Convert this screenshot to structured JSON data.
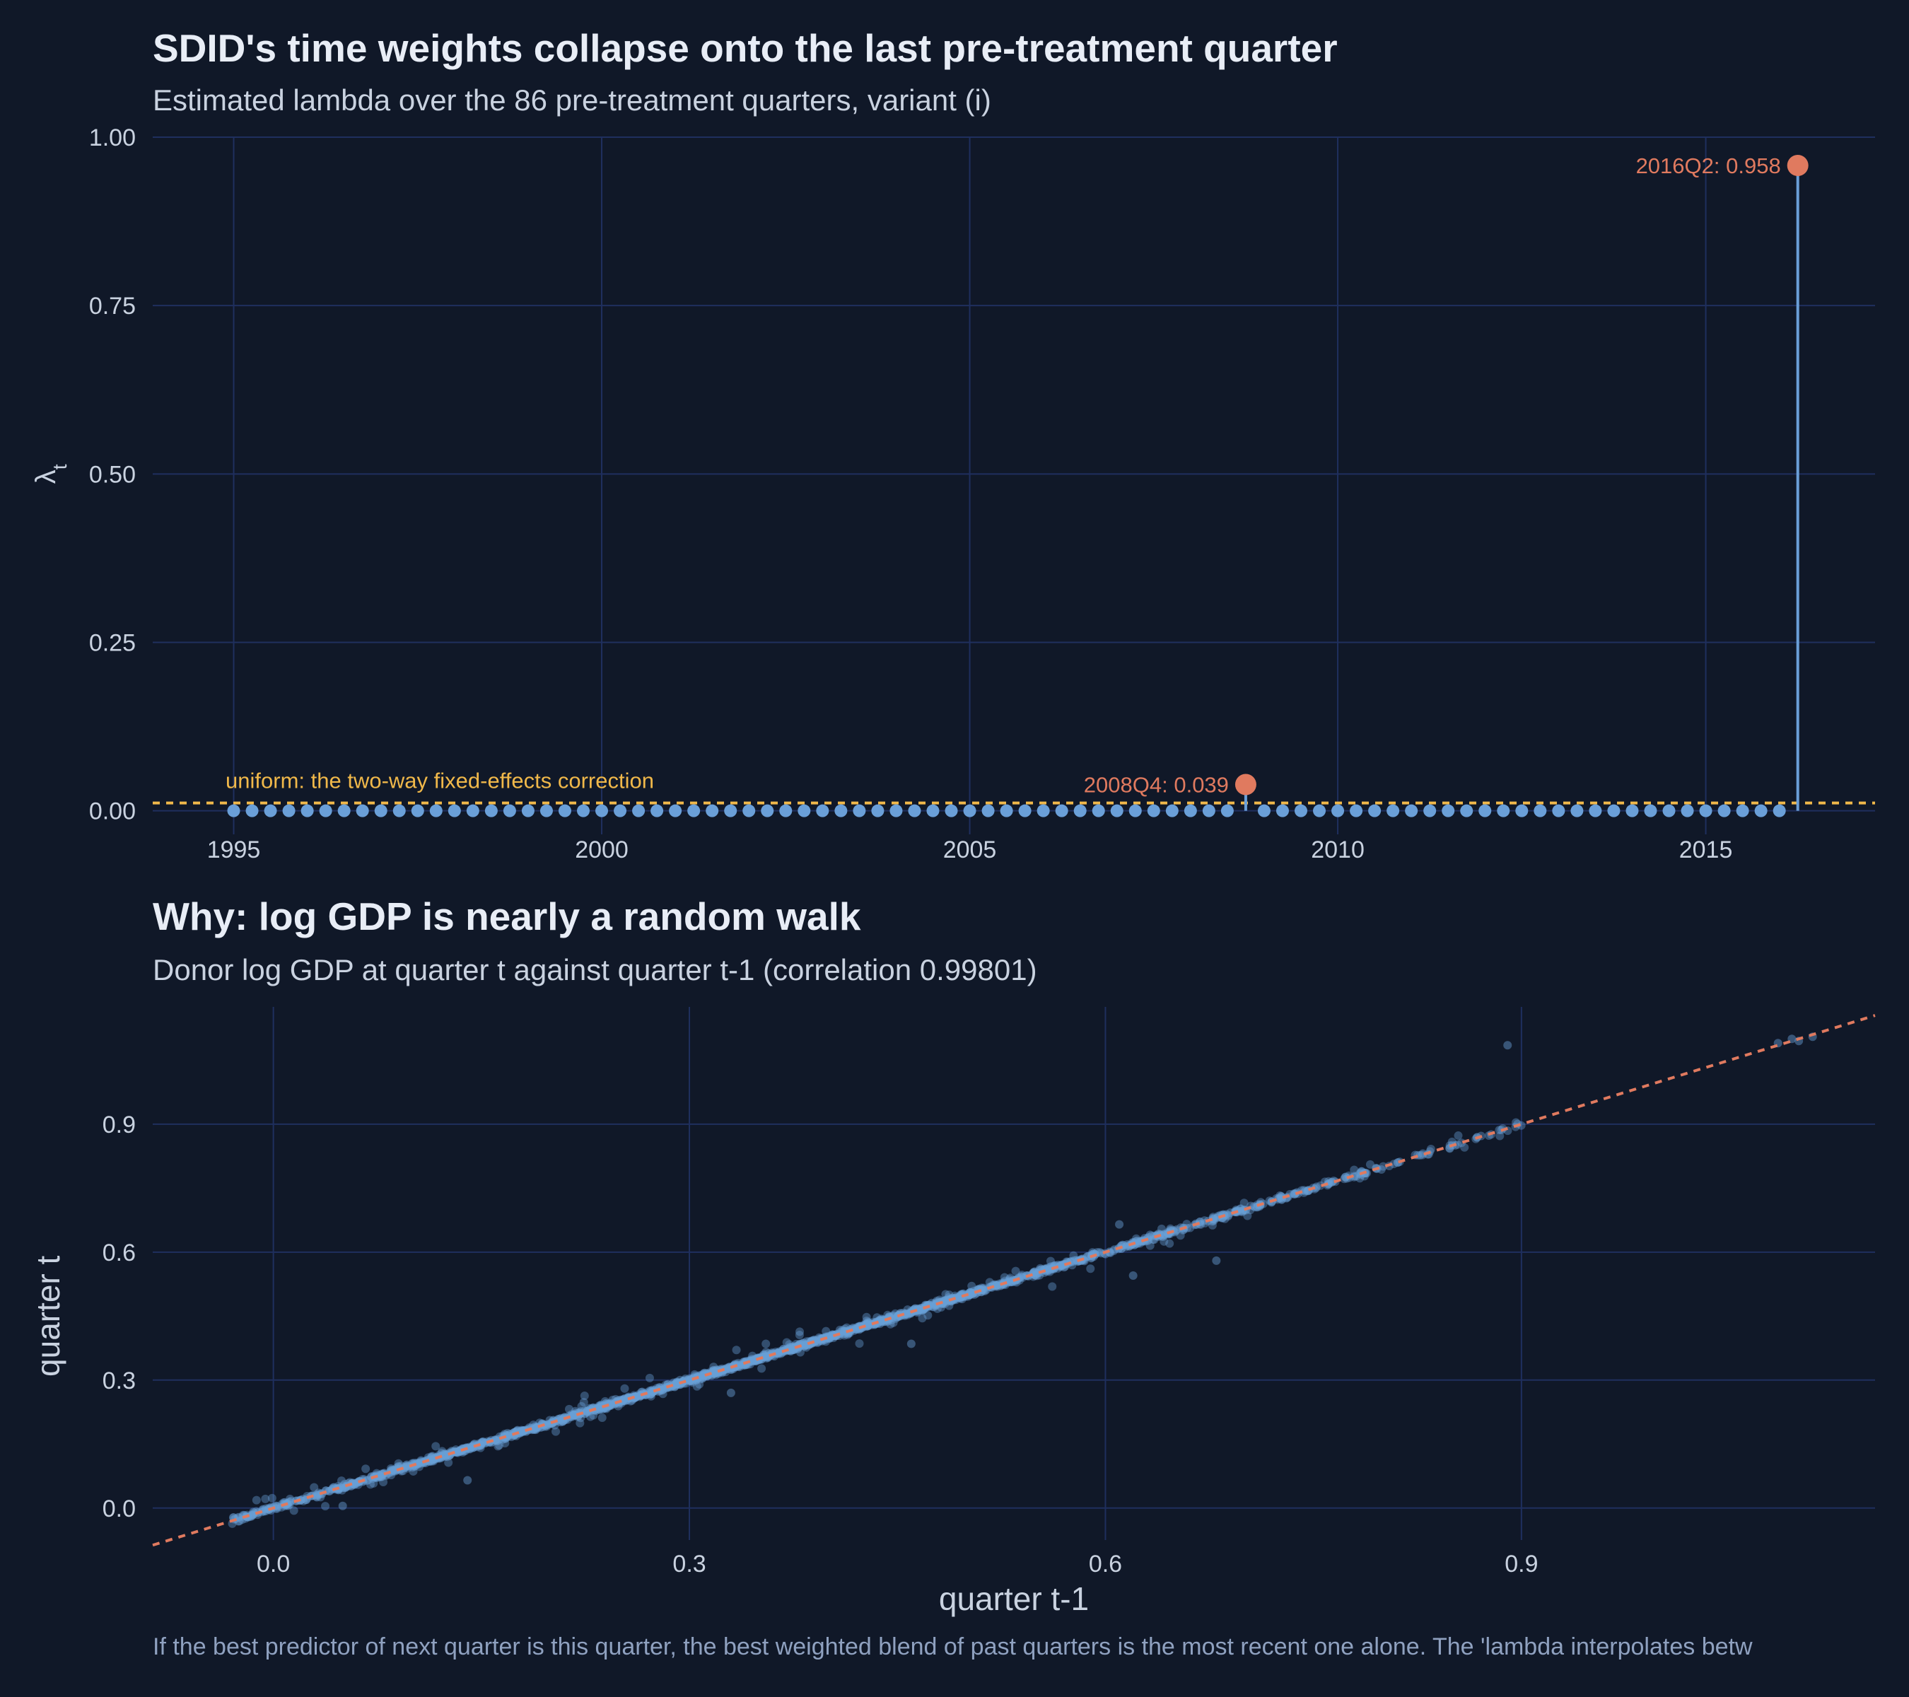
{
  "title1": "SDID's time weights collapse onto the last pre-treatment quarter",
  "subtitle1": "Estimated lambda over the 86 pre-treatment quarters, variant (i)",
  "title2": "Why: log GDP is nearly a random walk",
  "subtitle2": "Donor log GDP at quarter t against quarter t-1 (correlation 0.99801)",
  "caption": "If the best predictor of next quarter is this quarter, the best weighted blend of past quarters is the most recent one alone. The 'lambda interpolates betw",
  "colors": {
    "background": "#101828",
    "grid": "#1f2f5e",
    "points": "#6a9fd8",
    "highlight": "#e07a5f",
    "uniform": "#f0b84a",
    "text": "#c9d2e0"
  },
  "chart_data": [
    {
      "type": "lollipop",
      "ylabel": "λt",
      "xlabel": "",
      "x_ticks": [
        "1995",
        "2000",
        "2005",
        "2010",
        "2015"
      ],
      "y_ticks": [
        "0.00",
        "0.25",
        "0.50",
        "0.75",
        "1.00"
      ],
      "xlim": [
        1993.9,
        2017.3
      ],
      "ylim": [
        -0.035,
        1.0
      ],
      "grid": true,
      "series_points": {
        "start": "1995Q1",
        "end": "2016Q2",
        "count": 86,
        "default_value": 0.0
      },
      "highlights": [
        {
          "quarter": "2008Q4",
          "value": 0.039,
          "label": "2008Q4: 0.039"
        },
        {
          "quarter": "2016Q2",
          "value": 0.958,
          "label": "2016Q2: 0.958"
        }
      ],
      "reference_line": {
        "value": 0.0116,
        "label": "uniform: the two-way fixed-effects correction",
        "style": "dashed"
      }
    },
    {
      "type": "scatter",
      "xlabel": "quarter t-1",
      "ylabel": "quarter t",
      "x_ticks": [
        "0.0",
        "0.3",
        "0.6",
        "0.9"
      ],
      "y_ticks": [
        "0.0",
        "0.3",
        "0.6",
        "0.9"
      ],
      "xlim": [
        -0.087,
        1.155
      ],
      "ylim": [
        -0.075,
        1.175
      ],
      "grid": true,
      "reference_line": {
        "slope": 1,
        "intercept": 0,
        "style": "dashed"
      },
      "density": [
        {
          "x_range": [
            -0.03,
            0.1
          ],
          "n": 220
        },
        {
          "x_range": [
            0.1,
            0.3
          ],
          "n": 520
        },
        {
          "x_range": [
            0.3,
            0.5
          ],
          "n": 620
        },
        {
          "x_range": [
            0.5,
            0.65
          ],
          "n": 280
        },
        {
          "x_range": [
            0.65,
            0.8
          ],
          "n": 150
        },
        {
          "x_range": [
            0.8,
            0.9
          ],
          "n": 40
        }
      ],
      "points": [
        {
          "x": 0.89,
          "y": 1.085
        },
        {
          "x": 1.085,
          "y": 1.09
        },
        {
          "x": 1.095,
          "y": 1.1
        },
        {
          "x": 1.11,
          "y": 1.105
        },
        {
          "x": 1.1,
          "y": 1.095
        },
        {
          "x": 0.62,
          "y": 0.545
        },
        {
          "x": 0.68,
          "y": 0.58
        },
        {
          "x": 0.46,
          "y": 0.385
        },
        {
          "x": 0.33,
          "y": 0.27
        },
        {
          "x": 0.14,
          "y": 0.065
        },
        {
          "x": 0.05,
          "y": 0.005
        },
        {
          "x": 0.61,
          "y": 0.665
        }
      ]
    }
  ]
}
